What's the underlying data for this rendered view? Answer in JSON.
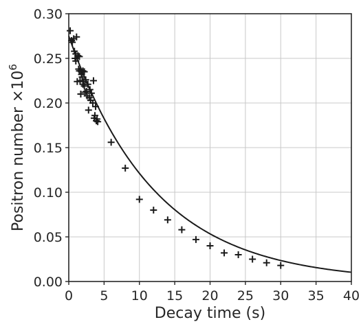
{
  "chart_data": {
    "type": "scatter",
    "xlabel": "Decay time (s)",
    "ylabel_prefix": "Positron number ×10",
    "ylabel_exponent": "6",
    "xlim": [
      0,
      40
    ],
    "ylim": [
      0,
      0.3
    ],
    "xticks": [
      0,
      5,
      10,
      15,
      20,
      25,
      30,
      35,
      40
    ],
    "xtick_labels": [
      "0",
      "5",
      "10",
      "15",
      "20",
      "25",
      "30",
      "35",
      "40"
    ],
    "yticks": [
      0,
      0.05,
      0.1,
      0.15,
      0.2,
      0.25,
      0.3
    ],
    "ytick_labels": [
      "0.00",
      "0.05",
      "0.10",
      "0.15",
      "0.20",
      "0.25",
      "0.30"
    ],
    "grid": true,
    "series": [
      {
        "marker": "plus",
        "color": "#1a1a1a",
        "points": [
          [
            0.2,
            0.281
          ],
          [
            0.4,
            0.27
          ],
          [
            0.5,
            0.268
          ],
          [
            0.7,
            0.272
          ],
          [
            0.8,
            0.258
          ],
          [
            0.9,
            0.25
          ],
          [
            1.0,
            0.247
          ],
          [
            1.0,
            0.255
          ],
          [
            1.1,
            0.274
          ],
          [
            1.2,
            0.224
          ],
          [
            1.3,
            0.253
          ],
          [
            1.4,
            0.238
          ],
          [
            1.5,
            0.252
          ],
          [
            1.5,
            0.236
          ],
          [
            1.6,
            0.225
          ],
          [
            1.7,
            0.21
          ],
          [
            1.7,
            0.236
          ],
          [
            1.8,
            0.232
          ],
          [
            1.9,
            0.229
          ],
          [
            2.0,
            0.236
          ],
          [
            2.0,
            0.221
          ],
          [
            2.1,
            0.224
          ],
          [
            2.2,
            0.219
          ],
          [
            2.2,
            0.235
          ],
          [
            2.3,
            0.212
          ],
          [
            2.4,
            0.226
          ],
          [
            2.5,
            0.213
          ],
          [
            2.6,
            0.208
          ],
          [
            2.7,
            0.221
          ],
          [
            2.8,
            0.192
          ],
          [
            2.9,
            0.206
          ],
          [
            3.0,
            0.215
          ],
          [
            3.1,
            0.203
          ],
          [
            3.2,
            0.211
          ],
          [
            3.4,
            0.2
          ],
          [
            3.5,
            0.225
          ],
          [
            3.6,
            0.183
          ],
          [
            3.7,
            0.186
          ],
          [
            3.8,
            0.196
          ],
          [
            3.9,
            0.18
          ],
          [
            4.0,
            0.182
          ],
          [
            4.1,
            0.179
          ],
          [
            6.0,
            0.156
          ],
          [
            8.0,
            0.127
          ],
          [
            10.0,
            0.092
          ],
          [
            12.0,
            0.08
          ],
          [
            14.0,
            0.069
          ],
          [
            16.0,
            0.058
          ],
          [
            18.0,
            0.047
          ],
          [
            20.0,
            0.04
          ],
          [
            22.0,
            0.032
          ],
          [
            24.0,
            0.03
          ],
          [
            26.0,
            0.025
          ],
          [
            28.0,
            0.021
          ],
          [
            30.0,
            0.018
          ]
        ]
      }
    ],
    "fit": {
      "type": "exponential",
      "amplitude": 0.275,
      "tau": 12.2
    }
  }
}
